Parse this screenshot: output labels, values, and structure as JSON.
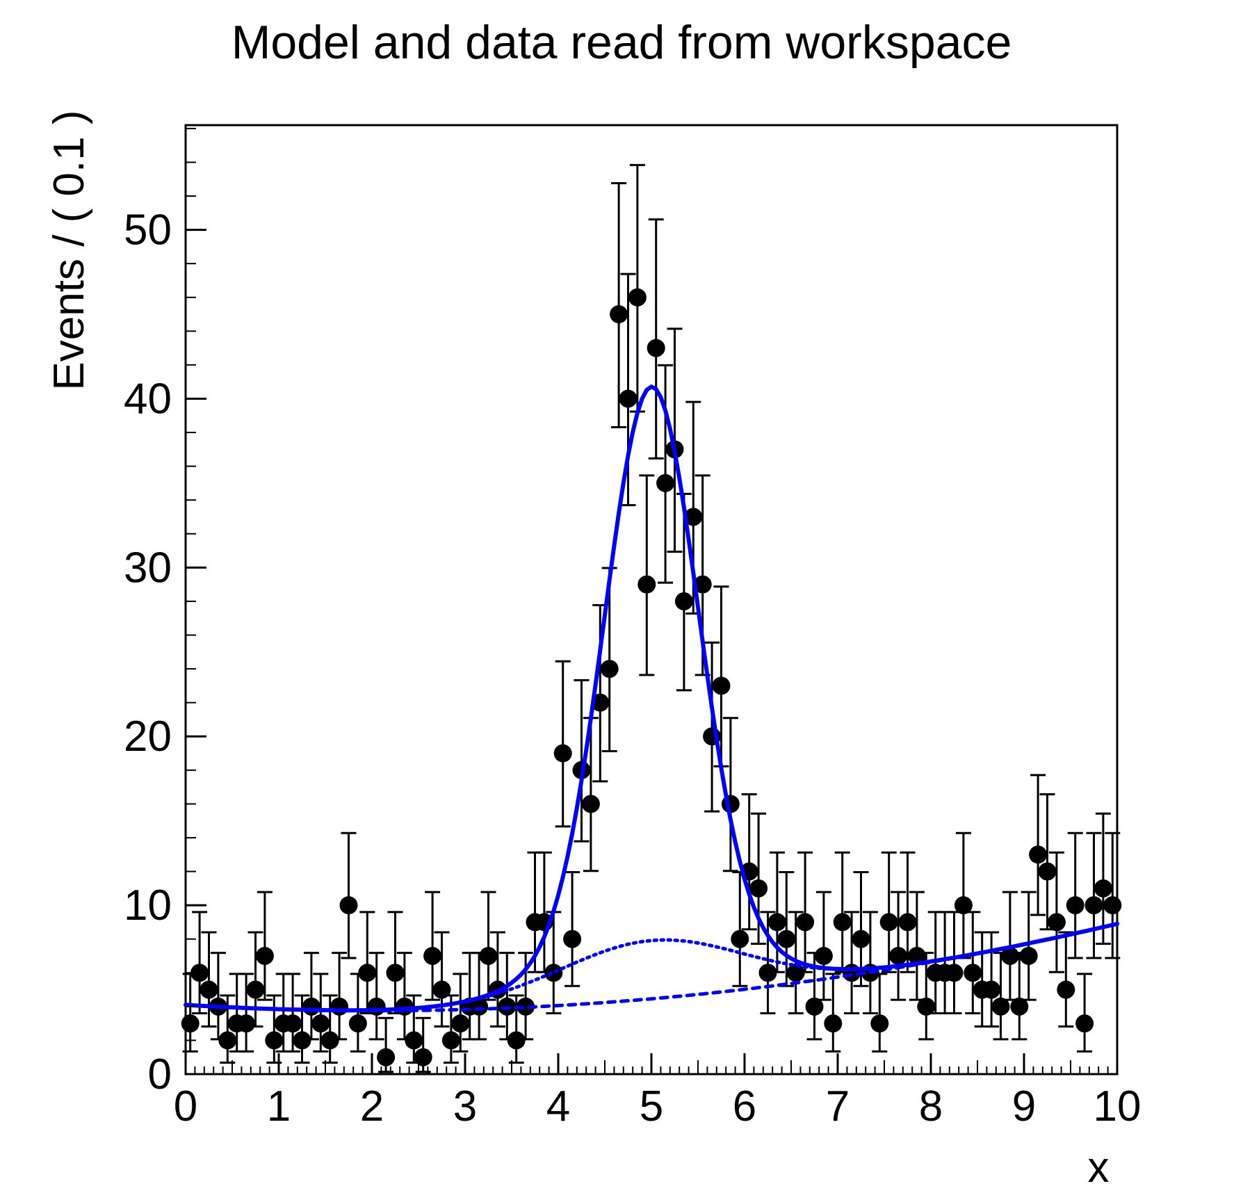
{
  "window": {
    "background": "#ffffff"
  },
  "chart_data": {
    "type": "scatter",
    "title": "Model and data read from workspace",
    "xlabel": "x",
    "ylabel": "Events / ( 0.1 )",
    "xlim": [
      0,
      10
    ],
    "ylim": [
      0,
      56.2
    ],
    "grid": false,
    "legend": "none",
    "x_major_ticks": [
      0,
      1,
      2,
      3,
      4,
      5,
      6,
      7,
      8,
      9,
      10
    ],
    "x_tick_labels": [
      "0",
      "1",
      "2",
      "3",
      "4",
      "5",
      "6",
      "7",
      "8",
      "9",
      "10"
    ],
    "y_major_ticks": [
      0,
      10,
      20,
      30,
      40,
      50
    ],
    "y_tick_labels": [
      "0",
      "10",
      "20",
      "30",
      "40",
      "50"
    ],
    "x_minor_step": 0.1,
    "x_medium_step": 0.5,
    "y_minor_step": 2,
    "bins": {
      "x_start": 0.05,
      "x_step": 0.1,
      "counts": [
        3,
        6,
        5,
        4,
        2,
        3,
        3,
        5,
        7,
        2,
        3,
        3,
        2,
        4,
        3,
        2,
        4,
        10,
        3,
        6,
        4,
        1,
        6,
        4,
        2,
        1,
        7,
        5,
        2,
        3,
        4,
        4,
        7,
        5,
        4,
        2,
        4,
        9,
        9,
        6,
        19,
        8,
        18,
        16,
        22,
        24,
        45,
        40,
        46,
        29,
        43,
        35,
        37,
        28,
        33,
        29,
        20,
        23,
        16,
        8,
        12,
        11,
        6,
        9,
        8,
        6,
        9,
        4,
        7,
        3,
        9,
        6,
        8,
        6,
        3,
        9,
        7,
        9,
        7,
        4,
        6,
        6,
        6,
        10,
        6,
        5,
        5,
        4,
        7,
        4,
        7,
        13,
        12,
        9,
        5,
        10,
        3,
        10,
        11,
        10
      ]
    },
    "error_mode": "poisson",
    "marker": {
      "shape": "circle",
      "color": "#000000",
      "radius_px": 13
    },
    "curve_color": "#0000ff",
    "curves": [
      {
        "name": "bkg_sig2",
        "style": "dotted",
        "dash": "3.5 6.5",
        "width": 5,
        "description": "background + wide gaussian component, peaks ~7.9 at x=5"
      },
      {
        "name": "bkg",
        "style": "dashed",
        "dash": "10 9",
        "width": 5,
        "description": "background component, ~4.1 at x=0, min ~3.75 at x=2, ~8.9 at x=10"
      },
      {
        "name": "model",
        "style": "solid",
        "dash": "",
        "width": 6,
        "description": "total model, peak ~40.7 at x=5"
      }
    ],
    "model_params": {
      "bkg_poly": [
        4.1,
        -0.336,
        0.0816
      ],
      "sig2": {
        "amp": 3.45,
        "mean": 5,
        "sigma": 1
      },
      "sig1": {
        "amp": 32.8,
        "mean": 5,
        "sigma": 0.5
      }
    }
  }
}
